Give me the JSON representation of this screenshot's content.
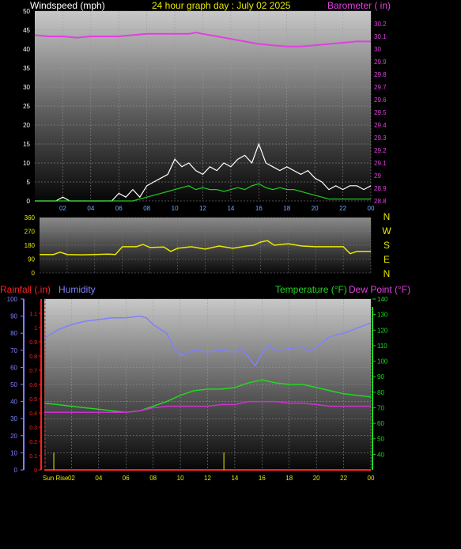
{
  "header": {
    "windspeed_label": "Windspeed (mph)",
    "title": "24 hour graph day : July 02 2025",
    "barometer_label": "Barometer ( in)"
  },
  "panel3_labels": {
    "rainfall_label": "Rainfall (.in)",
    "humidity_label": "Humidity",
    "temperature_label": "Temperature (°F)",
    "dewpoint_label": "Dew Point (°F)",
    "sunrise_label": "Sun Rise"
  },
  "compass": [
    "N",
    "W",
    "S",
    "E",
    "N"
  ],
  "colors": {
    "windspeed_avg": "#22cc22",
    "windspeed_gust": "#ffffff",
    "barometer": "#e040e0",
    "direction": "#e8e800",
    "rainfall": "#ff2020",
    "humidity": "#8080ff",
    "temperature": "#20d820",
    "dewpoint": "#d030d0",
    "sunrise": "#c8c800"
  },
  "chart_data": [
    {
      "type": "line",
      "xlabels": [
        "02",
        "04",
        "06",
        "08",
        "10",
        "12",
        "14",
        "16",
        "18",
        "20",
        "22",
        "00"
      ],
      "x_range_hours": [
        0,
        24
      ],
      "left_axis": {
        "label": "Windspeed (mph)",
        "ylim": [
          0,
          50
        ],
        "ticks": [
          0,
          5,
          10,
          15,
          20,
          25,
          30,
          35,
          40,
          45,
          50
        ]
      },
      "right_axis": {
        "label": "Barometer ( in)",
        "ylim": [
          28.8,
          30.3
        ],
        "ticks": [
          "28.8",
          "28.9",
          "29",
          "29.1",
          "29.2",
          "29.3",
          "29.4",
          "29.5",
          "29.6",
          "29.7",
          "29.8",
          "29.9",
          "30",
          "30.1",
          "30.2"
        ]
      },
      "series": [
        {
          "name": "Barometer ( in)",
          "axis": "right",
          "x": [
            0,
            1,
            2,
            3,
            4,
            5,
            6,
            7,
            8,
            9,
            10,
            11,
            11.5,
            12,
            13,
            14,
            15,
            16,
            17,
            18,
            19,
            20,
            21,
            22,
            23,
            24
          ],
          "y": [
            30.11,
            30.1,
            30.1,
            30.09,
            30.1,
            30.1,
            30.1,
            30.11,
            30.12,
            30.12,
            30.12,
            30.12,
            30.13,
            30.12,
            30.1,
            30.08,
            30.06,
            30.04,
            30.03,
            30.02,
            30.02,
            30.03,
            30.04,
            30.05,
            30.06,
            30.06
          ]
        },
        {
          "name": "Gust",
          "axis": "left",
          "x": [
            0,
            0.5,
            1,
            1.5,
            2,
            2.5,
            3,
            3.5,
            4,
            4.5,
            5,
            5.5,
            6,
            6.5,
            7,
            7.5,
            8,
            8.5,
            9,
            9.5,
            10,
            10.5,
            11,
            11.5,
            12,
            12.5,
            13,
            13.5,
            14,
            14.5,
            15,
            15.5,
            16,
            16.5,
            17,
            17.5,
            18,
            18.5,
            19,
            19.5,
            20,
            20.5,
            21,
            21.5,
            22,
            22.5,
            23,
            23.5,
            24
          ],
          "y": [
            0,
            0,
            0,
            0,
            1,
            0,
            0,
            0,
            0,
            0,
            0,
            0,
            2,
            1,
            3,
            1,
            4,
            5,
            6,
            7,
            11,
            9,
            10,
            8,
            7,
            9,
            8,
            10,
            9,
            11,
            12,
            10,
            15,
            10,
            9,
            8,
            9,
            8,
            7,
            8,
            6,
            5,
            3,
            4,
            3,
            4,
            4,
            3,
            4
          ]
        },
        {
          "name": "Average",
          "axis": "left",
          "x": [
            0,
            1,
            2,
            3,
            4,
            5,
            6,
            7,
            7.5,
            8,
            8.5,
            9,
            9.5,
            10,
            10.5,
            11,
            11.5,
            12,
            12.5,
            13,
            13.5,
            14,
            14.5,
            15,
            15.5,
            16,
            16.5,
            17,
            17.5,
            18,
            18.5,
            19,
            19.5,
            20,
            20.5,
            21,
            22,
            23,
            24
          ],
          "y": [
            0,
            0,
            0,
            0,
            0,
            0,
            0,
            0,
            0.5,
            1,
            1.5,
            2,
            2.5,
            3,
            3.5,
            4,
            3,
            3.5,
            3,
            3,
            2.5,
            3,
            3.5,
            3,
            4,
            4.5,
            3.5,
            3,
            3.5,
            3,
            3,
            2.5,
            2,
            1.5,
            1,
            0.5,
            0.5,
            0.5,
            0.5
          ]
        }
      ]
    },
    {
      "type": "line",
      "x_range_hours": [
        0,
        24
      ],
      "left_axis": {
        "label": "Wind Direction",
        "ylim": [
          0,
          360
        ],
        "ticks": [
          0,
          90,
          180,
          270,
          360
        ]
      },
      "series": [
        {
          "name": "Wind Direction",
          "x": [
            0,
            1,
            1.5,
            2,
            3,
            4,
            5,
            5.5,
            6,
            7,
            7.5,
            8,
            9,
            9.5,
            10,
            11,
            12,
            13,
            14,
            15,
            15.5,
            16,
            16.5,
            17,
            18,
            19,
            20,
            20.5,
            21,
            22,
            22.5,
            23,
            24
          ],
          "y": [
            120,
            120,
            135,
            120,
            118,
            120,
            122,
            120,
            170,
            170,
            185,
            165,
            168,
            140,
            160,
            170,
            155,
            175,
            160,
            175,
            180,
            200,
            210,
            180,
            190,
            175,
            170,
            170,
            170,
            170,
            125,
            140,
            140
          ]
        }
      ]
    },
    {
      "type": "line",
      "x_range_hours": [
        0,
        24
      ],
      "xlabels": [
        "02",
        "04",
        "06",
        "08",
        "10",
        "12",
        "14",
        "16",
        "18",
        "20",
        "22",
        "00"
      ],
      "left_axis_rain": {
        "label": "Rainfall (.in)",
        "ylim": [
          0,
          1.2
        ],
        "ticks": [
          "0",
          "0.1",
          "0.2",
          "0.3",
          "0.4",
          "0.5",
          "0.6",
          "0.7",
          "0.8",
          "0.9",
          "1",
          "1.1"
        ]
      },
      "left_axis_humidity": {
        "label": "Humidity",
        "ylim": [
          0,
          100
        ],
        "ticks": [
          0,
          10,
          20,
          30,
          40,
          50,
          60,
          70,
          80,
          90,
          100
        ]
      },
      "right_axis": {
        "label": "Temperature (°F)",
        "ylim": [
          30,
          140
        ],
        "ticks": [
          40,
          50,
          60,
          70,
          80,
          90,
          100,
          110,
          120,
          130,
          140
        ]
      },
      "series": [
        {
          "name": "Humidity",
          "axis": "humidity",
          "x": [
            0,
            1,
            2,
            3,
            4,
            5,
            6,
            7,
            7.5,
            8,
            9,
            9.5,
            10,
            11,
            12,
            13,
            14,
            14.5,
            15,
            15.5,
            16,
            16.5,
            17,
            18,
            19,
            19.5,
            20,
            21,
            22,
            23,
            24
          ],
          "y": [
            77,
            82,
            85,
            87,
            88,
            89,
            89,
            90,
            89,
            85,
            80,
            72,
            67,
            70,
            69,
            70,
            69,
            71,
            66,
            61,
            68,
            73,
            70,
            71,
            72,
            69,
            72,
            78,
            80,
            83,
            86
          ]
        },
        {
          "name": "Temperature (°F)",
          "axis": "temp",
          "x": [
            0,
            1,
            2,
            3,
            4,
            5,
            6,
            7,
            8,
            9,
            10,
            11,
            12,
            13,
            14,
            15,
            16,
            17,
            18,
            19,
            20,
            21,
            22,
            23,
            24
          ],
          "y": [
            73,
            72,
            71,
            70,
            69,
            68,
            67,
            68,
            71,
            74,
            78,
            81,
            82,
            82,
            83,
            86,
            88,
            86,
            85,
            85,
            83,
            81,
            79,
            78,
            77
          ]
        },
        {
          "name": "Dew Point (°F)",
          "axis": "temp",
          "x": [
            0,
            1,
            2,
            3,
            4,
            5,
            6,
            7,
            8,
            9,
            10,
            11,
            12,
            13,
            14,
            15,
            16,
            17,
            18,
            19,
            20,
            21,
            22,
            23,
            24
          ],
          "y": [
            67,
            67,
            67,
            67,
            67,
            67,
            67,
            68,
            70,
            71,
            71,
            71,
            71,
            72,
            72,
            74,
            74,
            74,
            73,
            73,
            72,
            71,
            71,
            71,
            71
          ]
        },
        {
          "name": "Rainfall (.in)",
          "axis": "rain",
          "x": [
            0,
            24
          ],
          "y": [
            0,
            0
          ]
        }
      ],
      "sunrise_markers_hours": [
        0.7,
        13.2
      ]
    }
  ]
}
